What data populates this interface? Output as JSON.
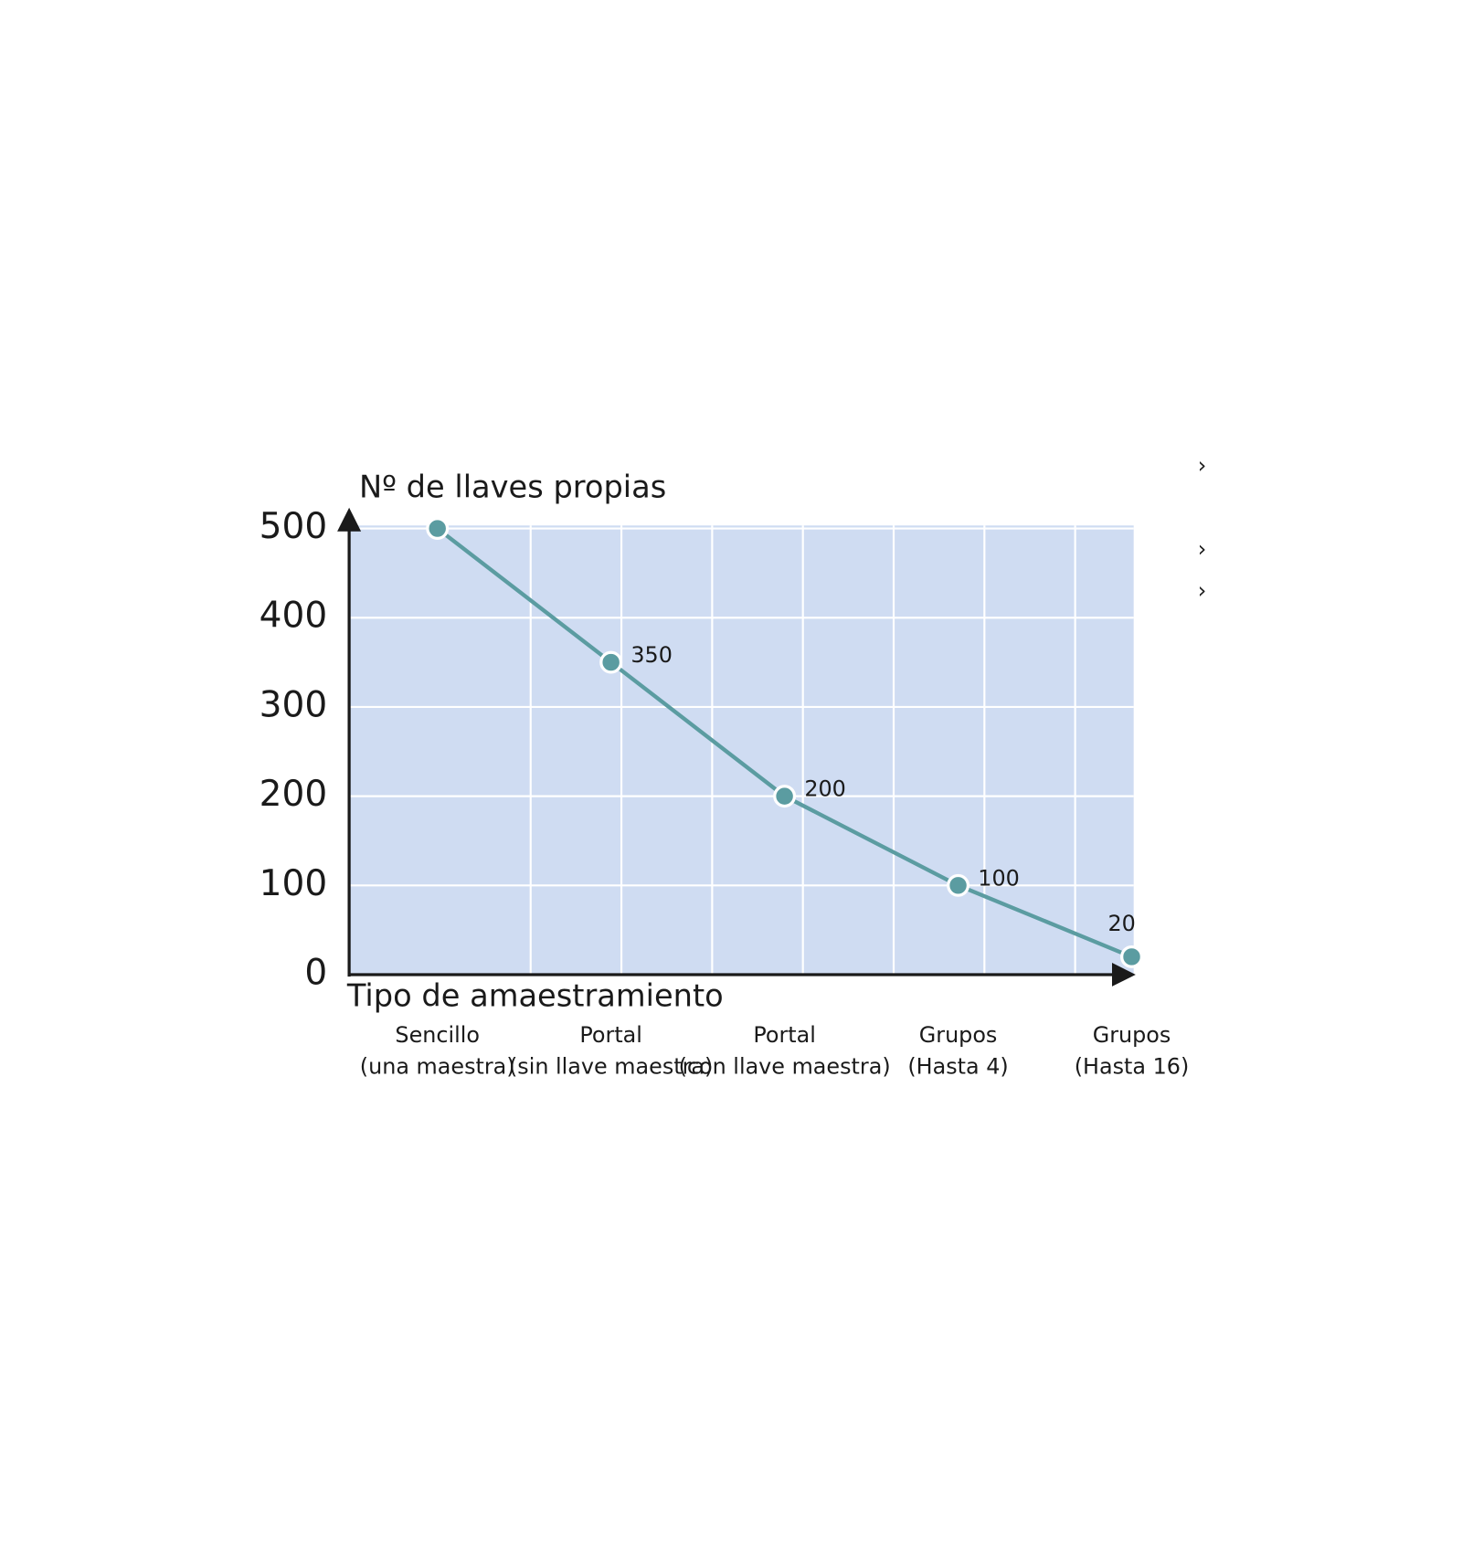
{
  "chart_data": {
    "type": "line",
    "y_label": "Nº de llaves propias",
    "x_label": "Tipo de amaestramiento",
    "categories": [
      [
        "Sencillo",
        "(una maestra)"
      ],
      [
        "Portal",
        "(sin llave maestra)"
      ],
      [
        "Portal",
        "(con llave maestra)"
      ],
      [
        "Grupos",
        "(Hasta 4)"
      ],
      [
        "Grupos",
        "(Hasta 16)"
      ]
    ],
    "series": [
      {
        "color": "#5b9ca1",
        "values": [
          500,
          350,
          200,
          100,
          20
        ],
        "value_labels": [
          null,
          "350",
          "200",
          "100",
          "20"
        ]
      }
    ],
    "ylim": [
      0,
      500
    ],
    "yticks": [
      0,
      100,
      200,
      300,
      400,
      500
    ],
    "grid": true,
    "background": "#cfdcf2",
    "annotations": [
      "›",
      "›",
      "›"
    ]
  }
}
